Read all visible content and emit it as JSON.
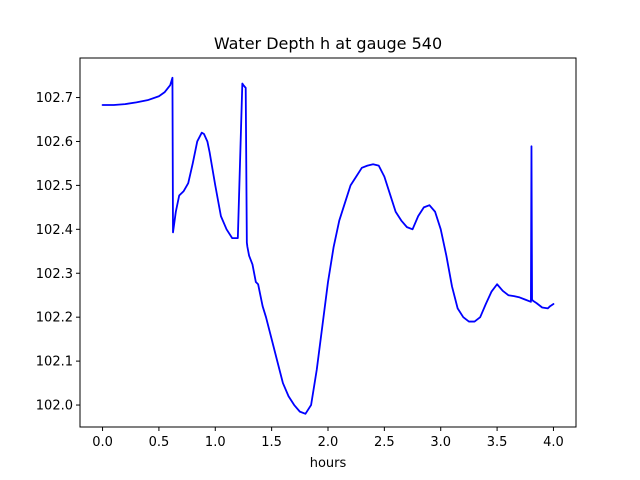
{
  "chart_data": {
    "type": "line",
    "title": "Water Depth h at gauge 540",
    "xlabel": "hours",
    "ylabel": "",
    "xlim": [
      -0.2,
      4.2
    ],
    "ylim": [
      101.95,
      102.79
    ],
    "xticks": [
      0.0,
      0.5,
      1.0,
      1.5,
      2.0,
      2.5,
      3.0,
      3.5,
      4.0
    ],
    "xtick_labels": [
      "0.0",
      "0.5",
      "1.0",
      "1.5",
      "2.0",
      "2.5",
      "3.0",
      "3.5",
      "4.0"
    ],
    "yticks": [
      102.0,
      102.1,
      102.2,
      102.3,
      102.4,
      102.5,
      102.6,
      102.7
    ],
    "ytick_labels": [
      "102.0",
      "102.1",
      "102.2",
      "102.3",
      "102.4",
      "102.5",
      "102.6",
      "102.7"
    ],
    "grid": false,
    "series": [
      {
        "color": "#0000ff",
        "x": [
          0.0,
          0.1,
          0.2,
          0.3,
          0.4,
          0.5,
          0.55,
          0.6,
          0.62,
          0.625,
          0.65,
          0.68,
          0.72,
          0.76,
          0.8,
          0.84,
          0.88,
          0.9,
          0.93,
          0.95,
          0.97,
          1.0,
          1.05,
          1.1,
          1.15,
          1.2,
          1.24,
          1.245,
          1.25,
          1.27,
          1.28,
          1.285,
          1.3,
          1.33,
          1.36,
          1.38,
          1.4,
          1.42,
          1.45,
          1.5,
          1.55,
          1.6,
          1.65,
          1.7,
          1.75,
          1.8,
          1.85,
          1.9,
          1.95,
          2.0,
          2.05,
          2.1,
          2.15,
          2.2,
          2.25,
          2.3,
          2.35,
          2.4,
          2.45,
          2.5,
          2.55,
          2.6,
          2.65,
          2.7,
          2.75,
          2.8,
          2.85,
          2.9,
          2.95,
          3.0,
          3.05,
          3.1,
          3.15,
          3.2,
          3.25,
          3.3,
          3.35,
          3.4,
          3.45,
          3.5,
          3.55,
          3.6,
          3.65,
          3.7,
          3.75,
          3.8,
          3.805,
          3.81,
          3.82,
          3.85,
          3.9,
          3.95,
          3.97,
          4.0
        ],
        "y": [
          102.683,
          102.683,
          102.685,
          102.689,
          102.694,
          102.703,
          102.712,
          102.728,
          102.745,
          102.393,
          102.44,
          102.477,
          102.487,
          102.505,
          102.55,
          102.6,
          102.62,
          102.617,
          102.6,
          102.575,
          102.545,
          102.5,
          102.43,
          102.4,
          102.38,
          102.38,
          102.732,
          102.73,
          102.728,
          102.722,
          102.37,
          102.36,
          102.34,
          102.32,
          102.28,
          102.275,
          102.25,
          102.225,
          102.2,
          102.15,
          102.1,
          102.05,
          102.02,
          102.0,
          101.985,
          101.98,
          102.0,
          102.08,
          102.18,
          102.28,
          102.36,
          102.42,
          102.46,
          102.5,
          102.52,
          102.54,
          102.545,
          102.548,
          102.545,
          102.52,
          102.48,
          102.44,
          102.42,
          102.405,
          102.4,
          102.43,
          102.45,
          102.455,
          102.44,
          102.4,
          102.34,
          102.27,
          102.22,
          102.2,
          102.19,
          102.19,
          102.2,
          102.23,
          102.258,
          102.275,
          102.26,
          102.25,
          102.248,
          102.245,
          102.24,
          102.235,
          102.589,
          102.24,
          102.237,
          102.232,
          102.222,
          102.22,
          102.225,
          102.23
        ]
      }
    ]
  }
}
